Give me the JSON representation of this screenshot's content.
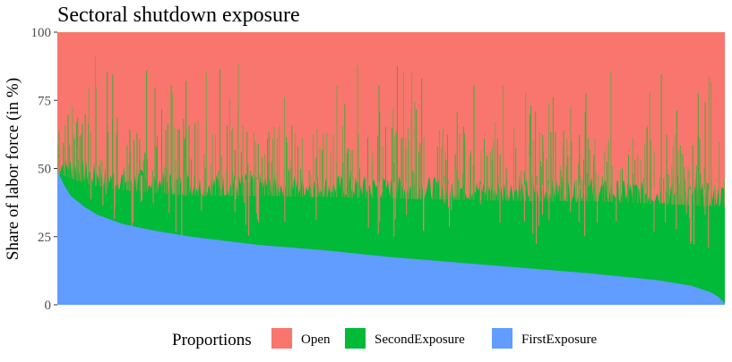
{
  "chart_data": {
    "type": "area",
    "title": "Sectoral shutdown exposure",
    "xlabel": "",
    "ylabel": "Share of labor force (in %)",
    "ylim": [
      0,
      100
    ],
    "yticks": [
      "0",
      "25",
      "50",
      "75",
      "100"
    ],
    "grid": false,
    "stacked": true,
    "legend": {
      "title": "Proportions",
      "placement": "bottom",
      "entries": [
        {
          "label": "Open",
          "color": "#F8766D"
        },
        {
          "label": "SecondExposure",
          "color": "#00BA38"
        },
        {
          "label": "FirstExposure",
          "color": "#619CFF"
        }
      ]
    },
    "series_description": "Units sorted by descending FirstExposure; approximate sampled profile",
    "first_exposure_profile": {
      "x_fraction": [
        0.0,
        0.01,
        0.02,
        0.04,
        0.06,
        0.1,
        0.15,
        0.2,
        0.3,
        0.4,
        0.5,
        0.6,
        0.7,
        0.8,
        0.9,
        0.95,
        0.98,
        0.99,
        1.0
      ],
      "value": [
        49,
        44,
        40,
        36,
        33,
        29.5,
        27,
        25,
        22,
        20,
        17.5,
        15.5,
        13.5,
        11.5,
        9,
        7,
        4.5,
        3,
        0.5
      ]
    },
    "second_exposure_top_profile": {
      "x_fraction": [
        0.0,
        0.05,
        0.1,
        0.2,
        0.3,
        0.4,
        0.5,
        0.6,
        0.7,
        0.8,
        0.9,
        1.0
      ],
      "value": [
        52,
        48,
        46,
        44,
        44,
        43.5,
        43,
        42.5,
        42,
        42,
        41,
        40
      ]
    },
    "colors": {
      "open": "#F8766D",
      "second": "#00BA38",
      "first": "#619CFF"
    }
  }
}
